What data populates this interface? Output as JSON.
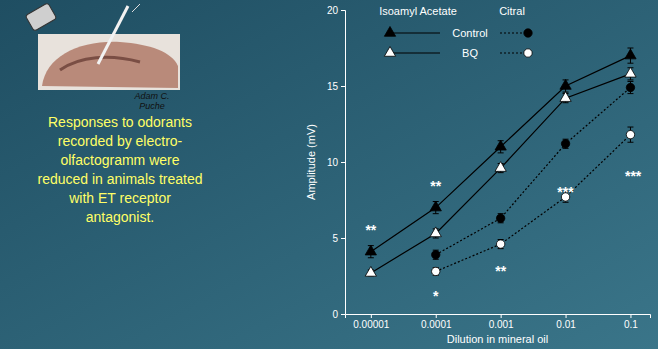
{
  "caption_lines": [
    "Adam C.",
    "Puche"
  ],
  "text_lines": [
    "Responses to odorants",
    "recorded by electro-",
    "olfactogramm were",
    "reduced in animals treated",
    "with ET receptor",
    "antagonist."
  ],
  "chart_data": {
    "type": "line",
    "x_label": "Dilution in mineral oil",
    "y_label": "Amplitude (mV)",
    "log": "x",
    "legend": "top",
    "x": [
      1e-05,
      0.0001,
      0.001,
      0.01,
      0.1
    ],
    "xlim": [
      4e-06,
      0.2
    ],
    "xticks": [
      1e-05,
      0.0001,
      0.001,
      0.01,
      0.1
    ],
    "ylim": [
      0,
      20
    ],
    "yticks": [
      0,
      5,
      10,
      15,
      20
    ],
    "groups": [
      "Isoamyl Acetate",
      "Citral"
    ],
    "series": [
      {
        "name": "Control",
        "group": "Isoamyl Acetate",
        "color": "#000000",
        "marker": "triangle",
        "line_style": "solid",
        "values": [
          4.1,
          7.0,
          11.0,
          15.0,
          17.0
        ],
        "errors": [
          0.4,
          0.4,
          0.4,
          0.4,
          0.5
        ]
      },
      {
        "name": "BQ",
        "group": "Isoamyl Acetate",
        "color": "#ffffff",
        "marker": "triangle",
        "line_style": "solid",
        "values": [
          2.7,
          5.3,
          9.6,
          14.2,
          15.8
        ],
        "errors": [
          0.2,
          0.3,
          0.3,
          0.3,
          0.4
        ]
      },
      {
        "name": "Control",
        "group": "Citral",
        "color": "#000000",
        "marker": "circle",
        "line_style": "dotted",
        "values": [
          null,
          3.9,
          6.3,
          11.2,
          14.9
        ],
        "errors": [
          null,
          0.3,
          0.3,
          0.3,
          0.4
        ]
      },
      {
        "name": "BQ",
        "group": "Citral",
        "color": "#ffffff",
        "marker": "circle",
        "line_style": "dotted",
        "values": [
          null,
          2.8,
          4.6,
          7.7,
          11.8
        ],
        "errors": [
          null,
          0.25,
          0.3,
          0.35,
          0.5
        ]
      }
    ],
    "annotations": [
      {
        "text": "**",
        "x": 1e-05,
        "y": 5.7
      },
      {
        "text": "**",
        "x": 0.0001,
        "y": 8.6
      },
      {
        "text": "*",
        "x": 0.0001,
        "y": 1.4
      },
      {
        "text": "**",
        "x": 0.001,
        "y": 3.0
      },
      {
        "text": "***",
        "x": 0.01,
        "y": 8.2
      },
      {
        "text": "***",
        "x": 0.11,
        "y": 9.3
      }
    ]
  }
}
